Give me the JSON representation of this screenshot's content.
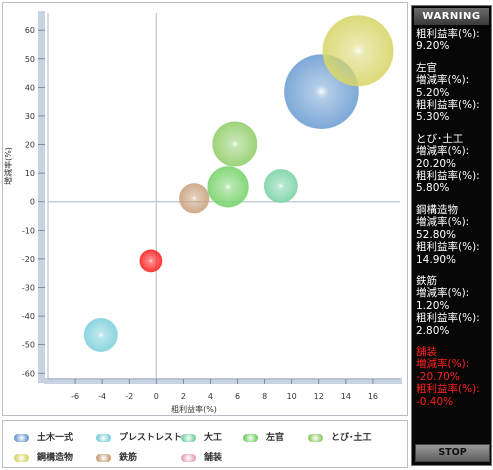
{
  "chart_data": {
    "type": "scatter",
    "subtype": "bubble",
    "xlabel": "粗利益率(%)",
    "ylabel": "増減率(%)",
    "xlim": [
      -8,
      18
    ],
    "ylim": [
      -62,
      66
    ],
    "x_ticks": [
      -6,
      -4,
      -2,
      0,
      2,
      4,
      6,
      8,
      10,
      12,
      14,
      16
    ],
    "y_ticks": [
      60,
      50,
      40,
      30,
      20,
      10,
      0,
      -10,
      -20,
      -30,
      -40,
      -50,
      -60
    ],
    "grid": false,
    "series": [
      {
        "name": "土木一式",
        "color": "#6f9fd3",
        "points": [
          {
            "x": 12.2,
            "y": 38.5,
            "r": 1.0
          }
        ]
      },
      {
        "name": "プレストレスト",
        "color": "#7fd0dc",
        "points": [
          {
            "x": -4.1,
            "y": -46.6,
            "r": 0.45
          }
        ]
      },
      {
        "name": "大工",
        "color": "#7bd3a6",
        "points": [
          {
            "x": 9.2,
            "y": 5.5,
            "r": 0.45
          }
        ]
      },
      {
        "name": "左官",
        "color": "#77d36a",
        "points": [
          {
            "x": 5.3,
            "y": 5.2,
            "r": 0.55
          }
        ]
      },
      {
        "name": "とび・土工",
        "color": "#93ce6c",
        "points": [
          {
            "x": 5.8,
            "y": 20.2,
            "r": 0.6
          }
        ]
      },
      {
        "name": "鋼構造物",
        "color": "#d8d66a",
        "points": [
          {
            "x": 14.9,
            "y": 52.8,
            "r": 0.95
          }
        ]
      },
      {
        "name": "鉄筋",
        "color": "#c9a27d",
        "points": [
          {
            "x": 2.8,
            "y": 1.2,
            "r": 0.4
          }
        ]
      },
      {
        "name": "舗装",
        "color": "#ff2020",
        "points": [
          {
            "x": -0.4,
            "y": -20.7,
            "r": 0.3
          }
        ]
      }
    ]
  },
  "legend": [
    {
      "label": "土木一式",
      "color": "#6f9fd3"
    },
    {
      "label": "プレストレスト",
      "color": "#7fd0dc"
    },
    {
      "label": "大工",
      "color": "#7bd3a6"
    },
    {
      "label": "左官",
      "color": "#77d36a"
    },
    {
      "label": "とび･土工",
      "color": "#93ce6c"
    },
    {
      "label": "鋼構造物",
      "color": "#d8d66a"
    },
    {
      "label": "鉄筋",
      "color": "#c9a27d"
    },
    {
      "label": "舗装",
      "color": "#e9a7b8"
    }
  ],
  "warning": {
    "title": "WARNING",
    "blocks": [
      {
        "lines": [
          "粗利益率(%):",
          "9.20%"
        ],
        "red": false
      },
      {
        "lines": [
          "左官",
          "増減率(%):",
          "5.20%",
          "粗利益率(%):",
          "5.30%"
        ],
        "red": false
      },
      {
        "lines": [
          "とび･土工",
          "増減率(%):",
          "20.20%",
          "粗利益率(%):",
          "5.80%"
        ],
        "red": false
      },
      {
        "lines": [
          "鋼構造物",
          "増減率(%):",
          "52.80%",
          "粗利益率(%):",
          "14.90%"
        ],
        "red": false
      },
      {
        "lines": [
          "鉄筋",
          "増減率(%):",
          "1.20%",
          "粗利益率(%):",
          "2.80%"
        ],
        "red": false
      },
      {
        "lines": [
          "舗装",
          "増減率(%):",
          "-20.70%",
          "粗利益率(%):",
          "-0.40%"
        ],
        "red": true
      }
    ],
    "stop_label": "STOP"
  }
}
